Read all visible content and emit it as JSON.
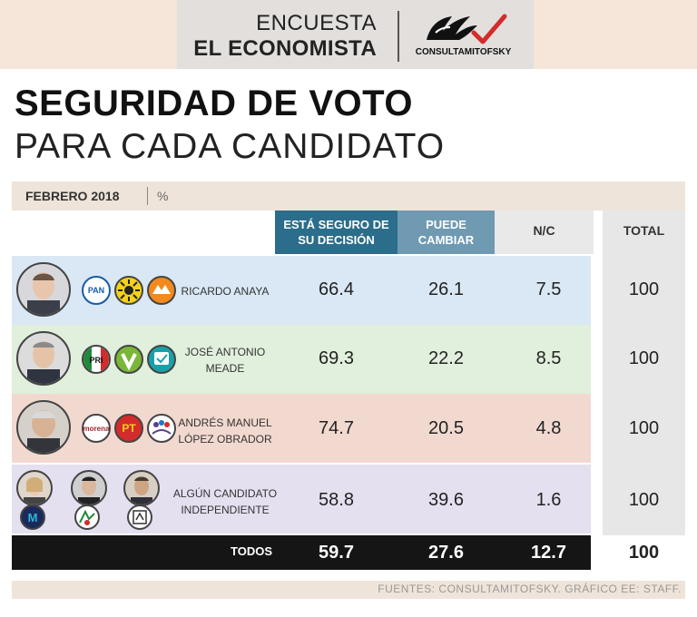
{
  "header": {
    "line1": "ENCUESTA",
    "line2": "EL ECONOMISTA",
    "logo_text": "CONSULTAMITOFSKY"
  },
  "title": {
    "line1": "SEGURIDAD DE VOTO",
    "line2": "PARA CADA CANDIDATO"
  },
  "subheader": {
    "date": "FEBRERO 2018",
    "unit": "%"
  },
  "columns": {
    "seguro": "ESTÁ SEGURO DE SU DECISIÓN",
    "puede": "PUEDE CAMBIAR",
    "nc": "N/C",
    "total": "TOTAL"
  },
  "colors": {
    "seguro": "#2b6d8a",
    "puede": "#6f9ab2",
    "row_anaya": "#d9e8f4",
    "row_meade": "#e1efdd",
    "row_amlo": "#f2d9cf",
    "row_indep": "#e4e0ef"
  },
  "parties": {
    "anaya": [
      "PAN",
      "PRD",
      "MC"
    ],
    "meade": [
      "PRI",
      "PVEM",
      "NA"
    ],
    "amlo": [
      "morena",
      "PT",
      "encuentro social"
    ],
    "indep": [
      "M",
      "",
      ""
    ]
  },
  "chart_data": {
    "type": "table",
    "title": "SEGURIDAD DE VOTO PARA CADA CANDIDATO",
    "period": "FEBRERO 2018",
    "unit": "%",
    "columns": [
      "ESTÁ SEGURO DE SU DECISIÓN",
      "PUEDE CAMBIAR",
      "N/C",
      "TOTAL"
    ],
    "rows": [
      {
        "candidate": "RICARDO ANAYA",
        "seguro": "66.4",
        "puede": "26.1",
        "nc": "7.5",
        "total": "100"
      },
      {
        "candidate": "JOSÉ ANTONIO MEADE",
        "seguro": "69.3",
        "puede": "22.2",
        "nc": "8.5",
        "total": "100"
      },
      {
        "candidate": "ANDRÉS MANUEL LÓPEZ OBRADOR",
        "seguro": "74.7",
        "puede": "20.5",
        "nc": "4.8",
        "total": "100"
      },
      {
        "candidate": "ALGÚN CANDIDATO INDEPENDIENTE",
        "seguro": "58.8",
        "puede": "39.6",
        "nc": "1.6",
        "total": "100"
      }
    ],
    "totals": {
      "label": "TODOS",
      "seguro": "59.7",
      "puede": "27.6",
      "nc": "12.7",
      "total": "100"
    }
  },
  "footer": "FUENTES: CONSULTAMITOFSKY.  GRÁFICO EE: STAFF."
}
